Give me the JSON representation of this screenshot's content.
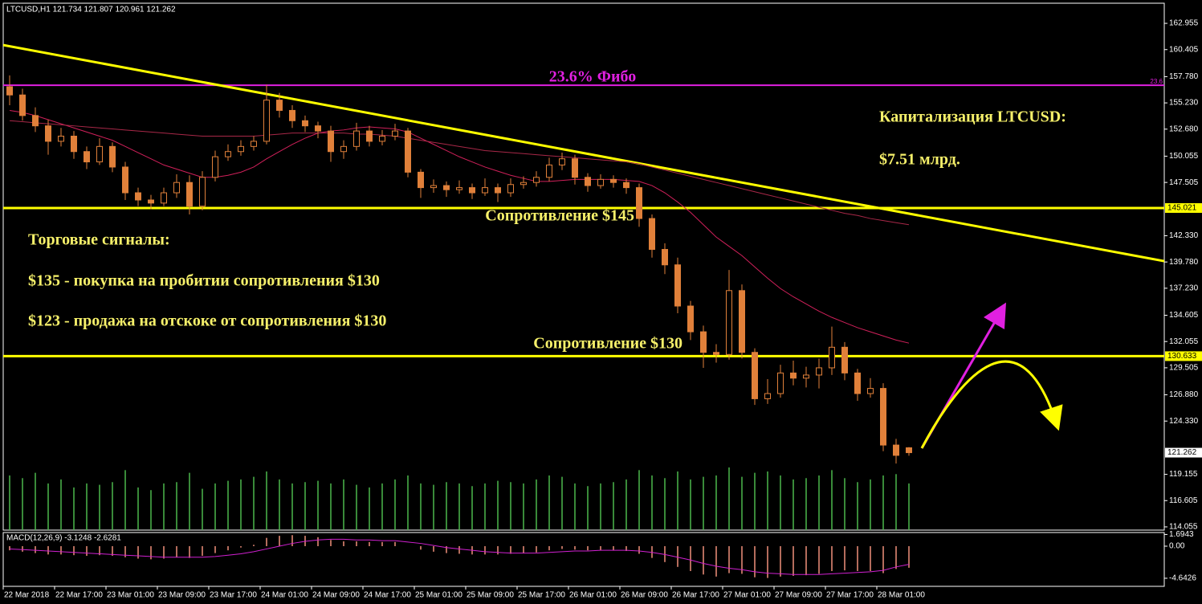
{
  "chart_data": {
    "type": "candlestick",
    "title": "LTCUSD,H1  121.734 121.807 120.961 121.262",
    "ylim": [
      113.74,
      164.91
    ],
    "yticks": [
      {
        "value": 162.955,
        "label": "162.955"
      },
      {
        "value": 160.405,
        "label": "160.405"
      },
      {
        "value": 157.78,
        "label": "157.780"
      },
      {
        "value": 155.23,
        "label": "155.230"
      },
      {
        "value": 152.68,
        "label": "152.680"
      },
      {
        "value": 150.055,
        "label": "150.055"
      },
      {
        "value": 147.505,
        "label": "147.505"
      },
      {
        "value": 142.33,
        "label": "142.330"
      },
      {
        "value": 139.78,
        "label": "139.780"
      },
      {
        "value": 137.23,
        "label": "137.230"
      },
      {
        "value": 134.605,
        "label": "134.605"
      },
      {
        "value": 132.055,
        "label": "132.055"
      },
      {
        "value": 129.505,
        "label": "129.505"
      },
      {
        "value": 126.88,
        "label": "126.880"
      },
      {
        "value": 124.33,
        "label": "124.330"
      },
      {
        "value": 119.155,
        "label": "119.155"
      },
      {
        "value": 116.605,
        "label": "116.605"
      },
      {
        "value": 114.055,
        "label": "114.055"
      }
    ],
    "xticks": [
      {
        "value": -0.5,
        "label": "22 Mar 2018"
      },
      {
        "value": 3.5,
        "label": "22 Mar 17:00"
      },
      {
        "value": 7.5,
        "label": "23 Mar 01:00"
      },
      {
        "value": 11.5,
        "label": "23 Mar 09:00"
      },
      {
        "value": 15.5,
        "label": "23 Mar 17:00"
      },
      {
        "value": 19.5,
        "label": "24 Mar 01:00"
      },
      {
        "value": 23.5,
        "label": "24 Mar 09:00"
      },
      {
        "value": 27.5,
        "label": "24 Mar 17:00"
      },
      {
        "value": 31.5,
        "label": "25 Mar 01:00"
      },
      {
        "value": 35.5,
        "label": "25 Mar 09:00"
      },
      {
        "value": 39.5,
        "label": "25 Mar 17:00"
      },
      {
        "value": 43.5,
        "label": "26 Mar 01:00"
      },
      {
        "value": 47.5,
        "label": "26 Mar 09:00"
      },
      {
        "value": 51.5,
        "label": "26 Mar 17:00"
      },
      {
        "value": 55.5,
        "label": "27 Mar 01:00"
      },
      {
        "value": 59.5,
        "label": "27 Mar 09:00"
      },
      {
        "value": 63.5,
        "label": "27 Mar 17:00"
      },
      {
        "value": 67.5,
        "label": "28 Mar 01:00"
      }
    ],
    "candle_color": "#e0803a",
    "open": [
      156.8,
      156.0,
      154.0,
      153.0,
      151.5,
      152.0,
      150.5,
      149.5,
      151.0,
      149.0,
      146.5,
      145.8,
      145.5,
      146.5,
      147.5,
      145.2,
      148.0,
      150.0,
      150.5,
      151.0,
      151.5,
      155.5,
      154.5,
      153.5,
      153.0,
      152.5,
      150.5,
      151.0,
      152.5,
      151.5,
      152.0,
      152.5,
      148.5,
      147.0,
      147.2,
      146.8,
      147.0,
      146.5,
      147.0,
      146.5,
      147.3,
      147.5,
      148.0,
      149.2,
      149.8,
      148.0,
      147.2,
      147.8,
      147.5,
      147.0,
      144.0,
      141.0,
      139.5,
      135.5,
      133.0,
      131.0,
      130.8,
      137.0,
      131.0,
      126.5,
      127.0,
      129.0,
      128.5,
      128.8,
      129.5,
      131.5,
      129.0,
      127.0,
      127.5,
      122.0,
      121.734
    ],
    "high": [
      157.9,
      156.6,
      154.8,
      153.6,
      152.8,
      152.5,
      151.0,
      151.8,
      151.4,
      149.5,
      147.0,
      146.3,
      147.0,
      148.3,
      148.2,
      148.6,
      150.6,
      151.2,
      151.6,
      152.0,
      157.0,
      156.2,
      155.0,
      154.0,
      153.4,
      153.0,
      151.6,
      153.3,
      153.0,
      152.6,
      153.2,
      152.8,
      148.8,
      147.8,
      147.6,
      147.7,
      147.4,
      147.9,
      147.4,
      147.9,
      148.1,
      148.6,
      149.9,
      150.4,
      150.2,
      148.4,
      148.3,
      148.2,
      147.9,
      147.4,
      144.4,
      141.6,
      140.2,
      136.0,
      133.6,
      131.8,
      139.0,
      137.6,
      131.4,
      128.4,
      129.8,
      130.2,
      129.6,
      130.4,
      133.5,
      132.0,
      129.4,
      128.5,
      128.0,
      122.6,
      121.807
    ],
    "low": [
      155.0,
      153.5,
      152.4,
      150.2,
      151.0,
      149.8,
      148.8,
      149.2,
      148.5,
      145.8,
      145.2,
      144.9,
      145.2,
      146.0,
      144.4,
      144.8,
      147.6,
      149.6,
      150.1,
      150.6,
      151.2,
      153.8,
      152.8,
      152.4,
      151.8,
      149.5,
      149.8,
      150.6,
      151.0,
      151.1,
      151.6,
      148.0,
      146.0,
      146.5,
      146.1,
      146.4,
      145.9,
      146.2,
      145.6,
      146.1,
      146.9,
      147.1,
      147.6,
      148.7,
      147.3,
      146.6,
      146.9,
      147.0,
      146.4,
      143.2,
      140.2,
      138.6,
      134.8,
      132.2,
      129.5,
      130.0,
      130.3,
      130.4,
      125.9,
      126.0,
      126.6,
      127.8,
      127.6,
      127.5,
      128.8,
      128.3,
      126.3,
      126.6,
      121.4,
      120.2,
      120.961
    ],
    "close": [
      156.0,
      154.0,
      153.0,
      151.5,
      152.0,
      150.5,
      149.5,
      151.0,
      149.0,
      146.5,
      145.8,
      145.5,
      146.5,
      147.5,
      145.2,
      148.0,
      150.0,
      150.5,
      151.0,
      151.5,
      155.5,
      154.5,
      153.5,
      153.0,
      152.5,
      150.5,
      151.0,
      152.5,
      151.5,
      152.0,
      152.5,
      148.5,
      147.0,
      147.2,
      146.8,
      147.0,
      146.5,
      147.0,
      146.5,
      147.3,
      147.5,
      148.0,
      149.2,
      149.8,
      148.0,
      147.2,
      147.8,
      147.5,
      147.0,
      144.0,
      141.0,
      139.5,
      135.5,
      133.0,
      131.0,
      130.8,
      137.0,
      131.0,
      126.5,
      127.0,
      129.0,
      128.5,
      128.8,
      129.5,
      131.5,
      129.0,
      127.0,
      127.5,
      122.0,
      121.0,
      121.262
    ],
    "lines": [
      {
        "color": "#d0205a",
        "values": [
          154.5,
          154.3,
          154.0,
          153.6,
          153.2,
          152.8,
          152.4,
          152.0,
          151.6,
          151.0,
          150.4,
          149.8,
          149.2,
          148.8,
          148.4,
          148.0,
          148.0,
          148.2,
          148.5,
          149.0,
          149.8,
          150.5,
          151.2,
          151.8,
          152.3,
          152.5,
          152.6,
          152.8,
          152.9,
          152.8,
          152.7,
          152.4,
          151.8,
          151.2,
          150.6,
          150.0,
          149.5,
          149.0,
          148.6,
          148.2,
          147.9,
          147.6,
          147.6,
          147.7,
          147.8,
          147.8,
          147.8,
          147.8,
          147.7,
          147.6,
          147.2,
          146.5,
          145.6,
          144.6,
          143.4,
          142.2,
          141.3,
          140.4,
          139.3,
          138.2,
          137.2,
          136.4,
          135.7,
          135.0,
          134.4,
          133.9,
          133.4,
          133.0,
          132.6,
          132.2,
          131.9
        ]
      },
      {
        "color": "#a82848",
        "values": [
          153.5,
          153.4,
          153.3,
          153.2,
          153.1,
          153.0,
          152.9,
          152.8,
          152.7,
          152.6,
          152.5,
          152.4,
          152.3,
          152.2,
          152.1,
          152.0,
          152.0,
          152.0,
          152.0,
          152.0,
          152.1,
          152.2,
          152.3,
          152.3,
          152.3,
          152.3,
          152.3,
          152.2,
          152.2,
          152.1,
          152.0,
          151.8,
          151.6,
          151.4,
          151.2,
          151.0,
          150.8,
          150.6,
          150.5,
          150.4,
          150.3,
          150.2,
          150.1,
          150.0,
          149.9,
          149.8,
          149.7,
          149.6,
          149.5,
          149.3,
          149.0,
          148.7,
          148.4,
          148.1,
          147.8,
          147.5,
          147.2,
          146.9,
          146.6,
          146.3,
          146.0,
          145.7,
          145.4,
          145.1,
          144.8,
          144.5,
          144.3,
          144.0,
          143.8,
          143.6,
          143.4
        ]
      }
    ],
    "volume": {
      "color": "#4cb84c",
      "values": [
        820,
        780,
        860,
        700,
        760,
        640,
        700,
        680,
        720,
        900,
        640,
        600,
        700,
        720,
        860,
        620,
        700,
        740,
        760,
        800,
        880,
        760,
        700,
        720,
        740,
        700,
        760,
        680,
        640,
        700,
        760,
        820,
        700,
        680,
        720,
        700,
        660,
        700,
        740,
        720,
        700,
        760,
        820,
        800,
        700,
        660,
        700,
        720,
        760,
        900,
        820,
        780,
        880,
        760,
        800,
        820,
        940,
        800,
        860,
        880,
        820,
        760,
        780,
        820,
        900,
        780,
        720,
        760,
        820,
        840,
        700
      ]
    },
    "levels": [
      {
        "value": 145.021,
        "color": "#ffff00"
      },
      {
        "value": 130.633,
        "color": "#ffff00"
      }
    ],
    "fibo": {
      "value": 156.94,
      "color": "#e020e0",
      "label": "23.6% Фибо",
      "tag": "23.6"
    },
    "trendline": {
      "color": "#ffff00",
      "x": [
        -0.5,
        90
      ],
      "y": [
        160.85,
        139.83
      ]
    },
    "annotations": {
      "resistance_145": "Сопротивление $145",
      "resistance_130": "Сопротивление $130",
      "capitalization": "Капитализация LTCUSD:",
      "capitalization_value": "$7.51 млрд.",
      "signals_title": "Торговые сигналы:",
      "signal_buy": "$135 - покупка на пробитии сопротивления $130",
      "signal_sell": "$123 - продажа на отскоке от сопротивления $130"
    },
    "macd": {
      "title": "MACD(12,26,9) -3.1248 -2.6281",
      "ylim": [
        -5.81,
        1.86
      ],
      "yticks": [
        {
          "value": 1.6943,
          "label": "1.6943"
        },
        {
          "value": 0,
          "label": "0.00"
        },
        {
          "value": -4.6426,
          "label": "-4.6426"
        }
      ],
      "histogram": {
        "color": "#f0907a",
        "values": [
          -0.6,
          -0.8,
          -1.0,
          -1.2,
          -1.2,
          -1.3,
          -1.4,
          -1.3,
          -1.4,
          -1.6,
          -1.8,
          -1.9,
          -1.8,
          -1.6,
          -1.7,
          -1.4,
          -1.0,
          -0.6,
          -0.2,
          0.2,
          1.2,
          1.5,
          1.6,
          1.5,
          1.3,
          0.9,
          0.7,
          0.7,
          0.6,
          0.6,
          0.6,
          0.0,
          -0.5,
          -0.8,
          -1.0,
          -1.1,
          -1.2,
          -1.2,
          -1.2,
          -1.1,
          -1.0,
          -0.9,
          -0.6,
          -0.4,
          -0.5,
          -0.6,
          -0.6,
          -0.6,
          -0.7,
          -1.1,
          -1.7,
          -2.3,
          -3.0,
          -3.6,
          -4.1,
          -4.4,
          -3.9,
          -4.0,
          -4.5,
          -4.6,
          -4.4,
          -4.3,
          -4.2,
          -4.0,
          -3.6,
          -3.5,
          -3.6,
          -3.6,
          -3.9,
          -3.3,
          -3.1248
        ]
      },
      "signal": {
        "color": "#d020d0",
        "values": [
          -0.4,
          -0.5,
          -0.6,
          -0.7,
          -0.8,
          -0.9,
          -1.0,
          -1.1,
          -1.2,
          -1.3,
          -1.4,
          -1.5,
          -1.6,
          -1.6,
          -1.6,
          -1.6,
          -1.5,
          -1.3,
          -1.1,
          -0.8,
          -0.4,
          0.0,
          0.4,
          0.7,
          0.9,
          1.0,
          1.0,
          0.9,
          0.9,
          0.8,
          0.8,
          0.6,
          0.4,
          0.1,
          -0.2,
          -0.4,
          -0.6,
          -0.8,
          -0.9,
          -1.0,
          -1.0,
          -1.0,
          -0.9,
          -0.8,
          -0.7,
          -0.7,
          -0.6,
          -0.6,
          -0.6,
          -0.7,
          -0.9,
          -1.2,
          -1.6,
          -2.0,
          -2.5,
          -2.9,
          -3.2,
          -3.4,
          -3.7,
          -3.9,
          -4.0,
          -4.1,
          -4.1,
          -4.1,
          -4.0,
          -3.9,
          -3.8,
          -3.7,
          -3.5,
          -3.0,
          -2.6281
        ]
      }
    }
  }
}
